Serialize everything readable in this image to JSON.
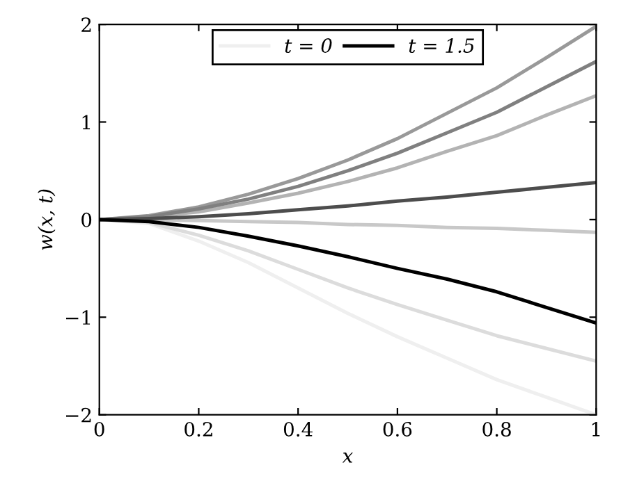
{
  "chart_data": {
    "type": "line",
    "xlabel": "x",
    "ylabel": "w(x, t)",
    "x": [
      0,
      0.1,
      0.2,
      0.3,
      0.4,
      0.5,
      0.6,
      0.7,
      0.8,
      0.9,
      1
    ],
    "series": [
      {
        "name": "t = 0",
        "color": "#efefef",
        "values": [
          0,
          -0.04,
          -0.22,
          -0.44,
          -0.7,
          -0.96,
          -1.2,
          -1.42,
          -1.64,
          -1.82,
          -2.0
        ]
      },
      {
        "color": "#dcdcdc",
        "values": [
          0,
          -0.03,
          -0.16,
          -0.32,
          -0.51,
          -0.7,
          -0.87,
          -1.03,
          -1.19,
          -1.32,
          -1.45
        ]
      },
      {
        "color": "#c8c8c8",
        "values": [
          0,
          0,
          -0.01,
          -0.02,
          -0.03,
          -0.05,
          -0.06,
          -0.08,
          -0.09,
          -0.11,
          -0.13
        ]
      },
      {
        "color": "#b3b3b3",
        "values": [
          0,
          0.03,
          0.08,
          0.17,
          0.27,
          0.39,
          0.53,
          0.7,
          0.86,
          1.07,
          1.27
        ]
      },
      {
        "color": "#999999",
        "values": [
          0,
          0.04,
          0.13,
          0.26,
          0.42,
          0.61,
          0.83,
          1.09,
          1.35,
          1.66,
          1.98
        ]
      },
      {
        "color": "#808080",
        "values": [
          0,
          0.03,
          0.11,
          0.21,
          0.34,
          0.5,
          0.68,
          0.89,
          1.1,
          1.36,
          1.62
        ]
      },
      {
        "color": "#4d4d4d",
        "values": [
          0,
          0.01,
          0.03,
          0.06,
          0.1,
          0.14,
          0.19,
          0.23,
          0.28,
          0.33,
          0.38
        ]
      },
      {
        "name": "t = 1.5",
        "color": "#000000",
        "values": [
          0,
          -0.02,
          -0.08,
          -0.17,
          -0.27,
          -0.38,
          -0.5,
          -0.61,
          -0.74,
          -0.9,
          -1.06
        ]
      }
    ],
    "xlim": [
      0,
      1
    ],
    "ylim": [
      -2,
      2
    ],
    "xticks": [
      0,
      0.2,
      0.4,
      0.6,
      0.8,
      1
    ],
    "yticks": [
      {
        "value": -2,
        "label": "−2"
      },
      {
        "value": -1,
        "label": "−1"
      },
      0,
      1,
      2
    ],
    "grid": false,
    "legend": "top",
    "marker": "none",
    "line_style": "solid"
  }
}
